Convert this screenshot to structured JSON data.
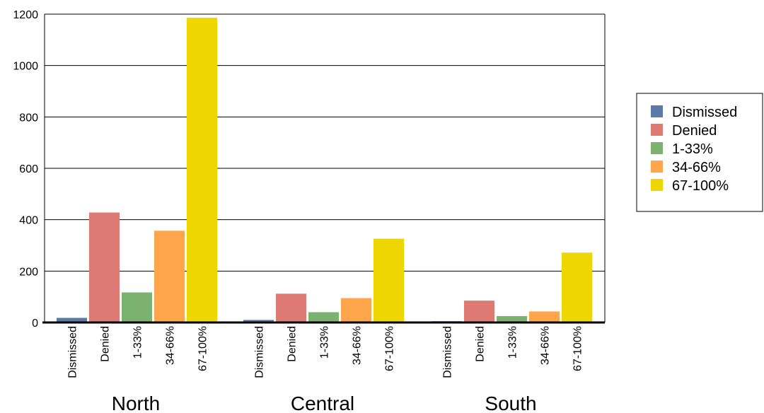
{
  "chart_data": {
    "type": "bar",
    "groups": [
      "North",
      "Central",
      "South"
    ],
    "series": [
      {
        "name": "Dismissed",
        "color": "#5b7aa7",
        "values": [
          18,
          10,
          5
        ]
      },
      {
        "name": "Denied",
        "color": "#de7a73",
        "values": [
          428,
          112,
          85
        ]
      },
      {
        "name": "1-33%",
        "color": "#7cb26f",
        "values": [
          117,
          40,
          25
        ]
      },
      {
        "name": "34-66%",
        "color": "#ffa64d",
        "values": [
          357,
          95,
          43
        ]
      },
      {
        "name": "67-100%",
        "color": "#eed700",
        "values": [
          1186,
          326,
          272
        ]
      }
    ],
    "yticks": [
      "0",
      "200",
      "400",
      "600",
      "800",
      "1000",
      "1200"
    ],
    "ylim": [
      0,
      1200
    ],
    "grid": true,
    "legend_position": "right"
  }
}
